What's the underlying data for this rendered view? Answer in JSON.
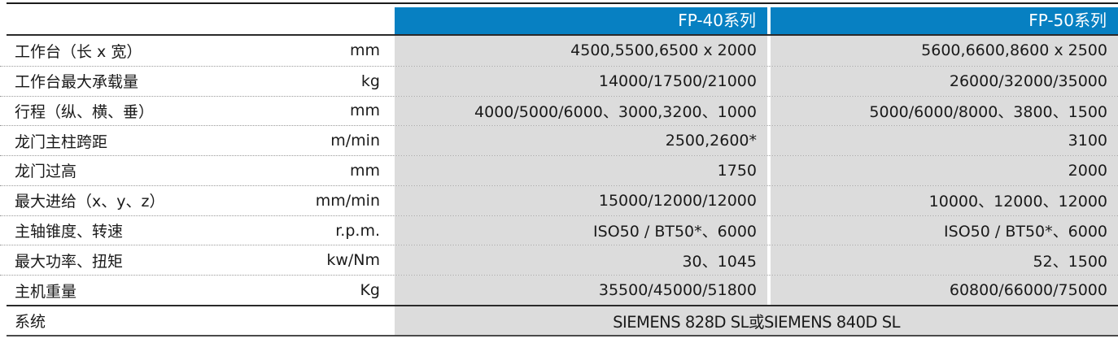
{
  "table": {
    "columns": [
      "FP-40系列",
      "FP-50系列"
    ],
    "colors": {
      "header_bg": "#0780c2",
      "cell_bg": "#dcdcdc"
    },
    "rows": [
      {
        "label": "工作台（长 x 宽）",
        "unit": "mm",
        "fp40": "4500,5500,6500 x 2000",
        "fp50": "5600,6600,8600 x 2500"
      },
      {
        "label": "工作台最大承载量",
        "unit": "kg",
        "fp40": "14000/17500/21000",
        "fp50": "26000/32000/35000"
      },
      {
        "label": "行程（纵、横、垂）",
        "unit": "mm",
        "fp40": "4000/5000/6000、3000,3200、1000",
        "fp50": "5000/6000/8000、3800、1500"
      },
      {
        "label": "龙门主柱跨距",
        "unit": "m/min",
        "fp40": "2500,2600*",
        "fp50": "3100"
      },
      {
        "label": "龙门过高",
        "unit": "mm",
        "fp40": "1750",
        "fp50": "2000"
      },
      {
        "label": "最大进给（x、y、z）",
        "unit": "mm/min",
        "fp40": "15000/12000/12000",
        "fp50": "10000、12000、12000"
      },
      {
        "label": "主轴锥度、转速",
        "unit": "r.p.m.",
        "fp40": "ISO50 / BT50*、6000",
        "fp50": "ISO50 / BT50*、6000"
      },
      {
        "label": "最大功率、扭矩",
        "unit": "kw/Nm",
        "fp40": "30、1045",
        "fp50": "52、1500"
      },
      {
        "label": "主机重量",
        "unit": "Kg",
        "fp40": "35500/45000/51800",
        "fp50": "60800/66000/75000"
      }
    ],
    "footer": {
      "label": "系统",
      "unit": "",
      "value": "SIEMENS 828D SL或SIEMENS 840D SL"
    }
  }
}
